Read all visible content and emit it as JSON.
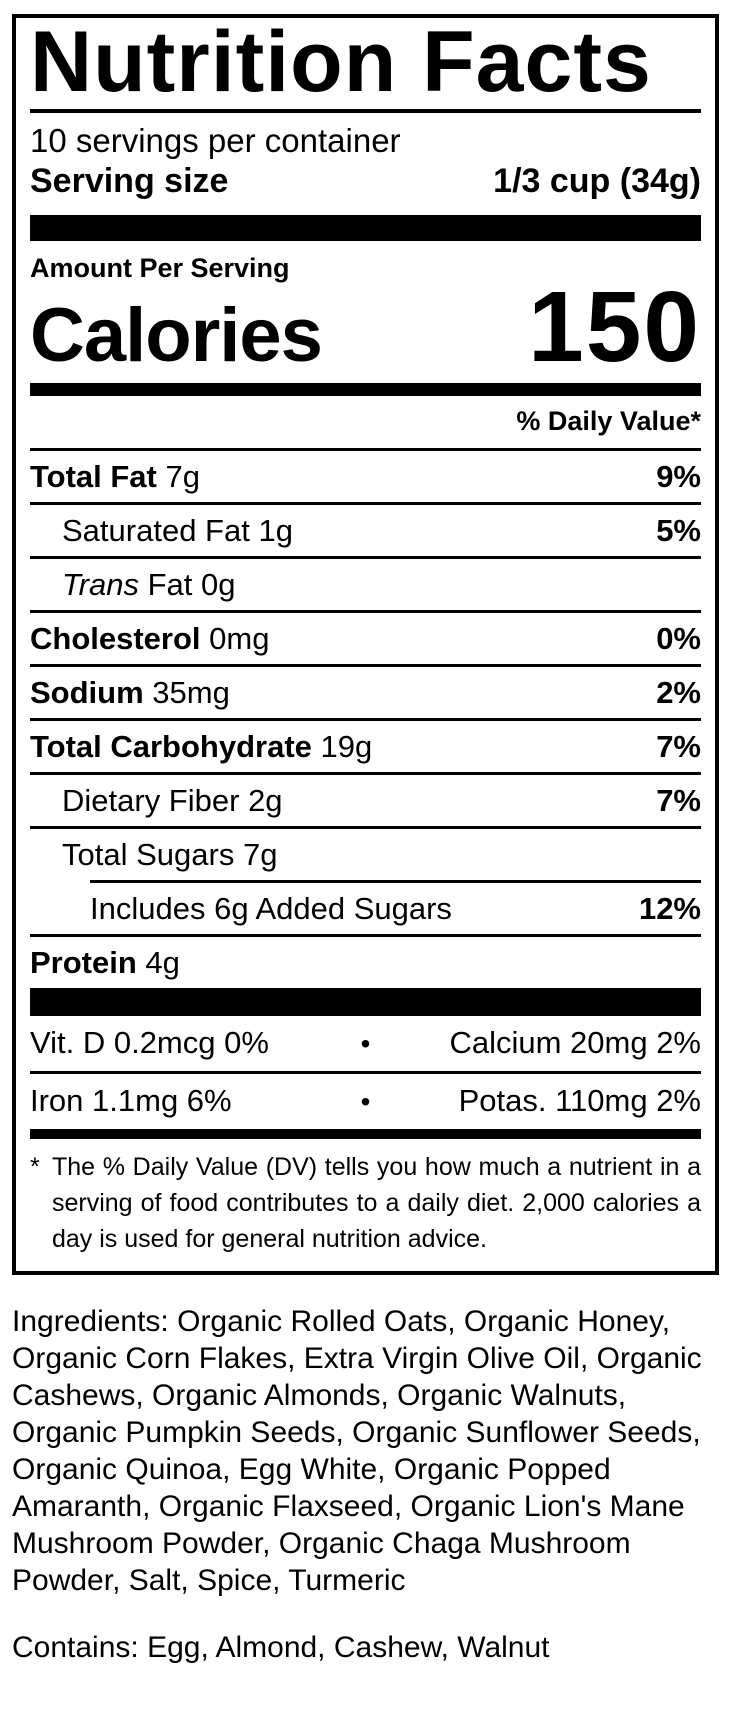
{
  "label": {
    "title": "Nutrition Facts",
    "servings_per_container": "10 servings per container",
    "serving_size": {
      "label": "Serving size",
      "value": "1/3 cup (34g)"
    },
    "amount_per_serving": "Amount Per Serving",
    "calories": {
      "label": "Calories",
      "value": "150"
    },
    "daily_value_header": "% Daily Value*",
    "nutrients": [
      {
        "name": "Total Fat",
        "amount": "7g",
        "dv": "9%"
      },
      {
        "name": "Saturated Fat",
        "amount": "1g",
        "dv": "5%"
      },
      {
        "name_italic": "Trans",
        "name": "Fat",
        "amount": "0g",
        "dv": ""
      },
      {
        "name": "Cholesterol",
        "amount": "0mg",
        "dv": "0%"
      },
      {
        "name": "Sodium",
        "amount": "35mg",
        "dv": "2%"
      },
      {
        "name": "Total Carbohydrate",
        "amount": "19g",
        "dv": "7%"
      },
      {
        "name": "Dietary Fiber",
        "amount": "2g",
        "dv": "7%"
      },
      {
        "name": "Total Sugars",
        "amount": "7g",
        "dv": ""
      },
      {
        "name": "Includes 6g Added Sugars",
        "amount": "",
        "dv": "12%"
      },
      {
        "name": "Protein",
        "amount": "4g",
        "dv": ""
      }
    ],
    "vitamins": [
      {
        "left": "Vit. D 0.2mcg 0%",
        "bullet": "•",
        "right": "Calcium 20mg 2%"
      },
      {
        "left": "Iron 1.1mg 6%",
        "bullet": "•",
        "right": "Potas. 110mg 2%"
      }
    ],
    "footnote": {
      "marker": "*",
      "text": "The % Daily Value (DV) tells you how much a nutrient in a serving of food contributes to a daily diet. 2,000 calories a day is used for general nutrition advice."
    }
  },
  "ingredients": {
    "text": "Ingredients: Organic Rolled Oats, Organic Honey, Organic Corn Flakes, Extra Virgin Olive Oil, Organic Cashews, Organic Almonds, Organic Walnuts, Organic Pumpkin Seeds, Organic Sunflower Seeds, Organic Quinoa, Egg White, Organic Popped Amaranth, Organic Flaxseed, Organic Lion's Mane Mushroom Powder, Organic Chaga Mushroom Powder, Salt, Spice, Turmeric"
  },
  "allergens": {
    "text": "Contains: Egg, Almond, Cashew, Walnut"
  },
  "colors": {
    "foreground": "#000000",
    "background": "#ffffff"
  }
}
